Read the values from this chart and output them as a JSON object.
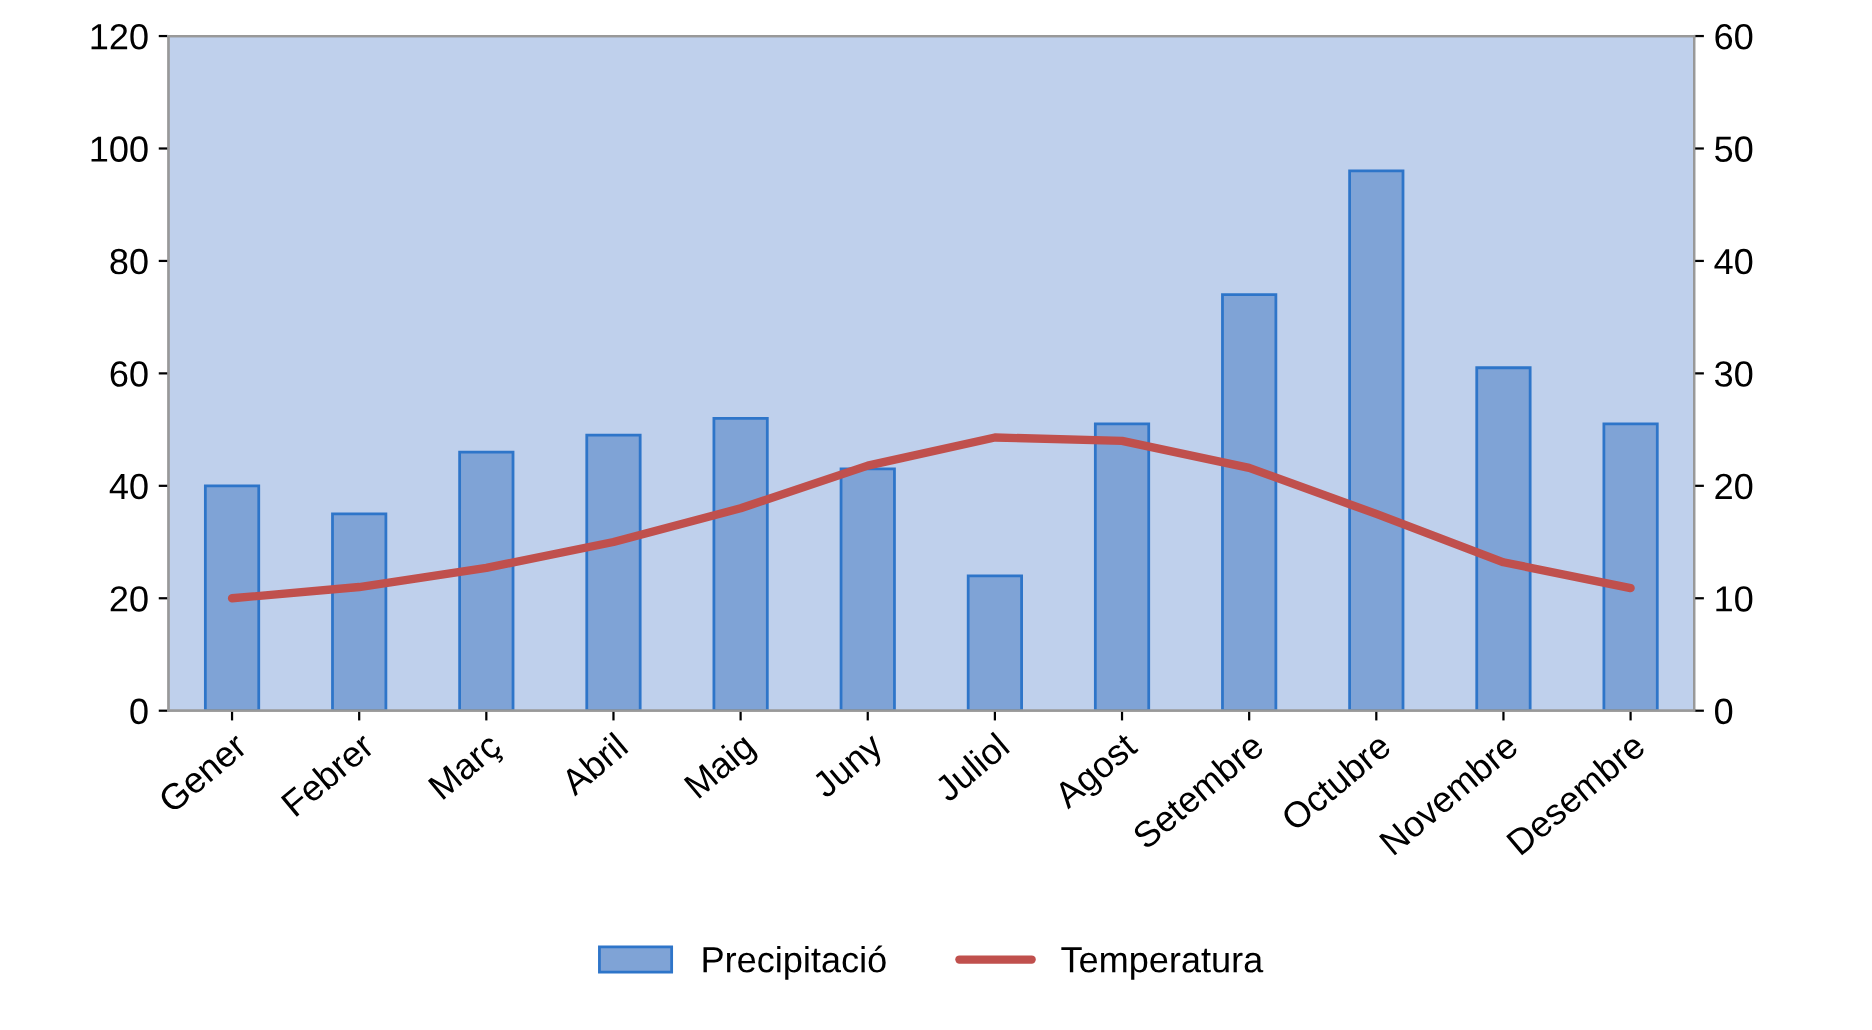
{
  "chart_data": {
    "type": "bar",
    "categories": [
      "Gener",
      "Febrer",
      "Març",
      "Abril",
      "Maig",
      "Juny",
      "Juliol",
      "Agost",
      "Setembre",
      "Octubre",
      "Novembre",
      "Desembre"
    ],
    "series": [
      {
        "name": "Precipitació",
        "color": "#7fa3d6",
        "values": [
          40,
          35,
          46,
          49,
          52,
          43,
          24,
          51,
          74,
          96,
          61,
          51
        ]
      },
      {
        "name": "Temperatura",
        "type": "line",
        "axis": "y2",
        "color": "#c0504d",
        "values": [
          10,
          11,
          12.7,
          15,
          18,
          21.8,
          24.3,
          24,
          21.6,
          17.5,
          13.2,
          10.9
        ]
      }
    ],
    "ylim": [
      0,
      120
    ],
    "yticks": [
      0,
      20,
      40,
      60,
      80,
      100,
      120
    ],
    "y2lim": [
      0,
      60
    ],
    "y2ticks": [
      0,
      10,
      20,
      30,
      40,
      50,
      60
    ],
    "grid": false,
    "legend": "bottom",
    "marker": "none",
    "line_style": "solid"
  }
}
